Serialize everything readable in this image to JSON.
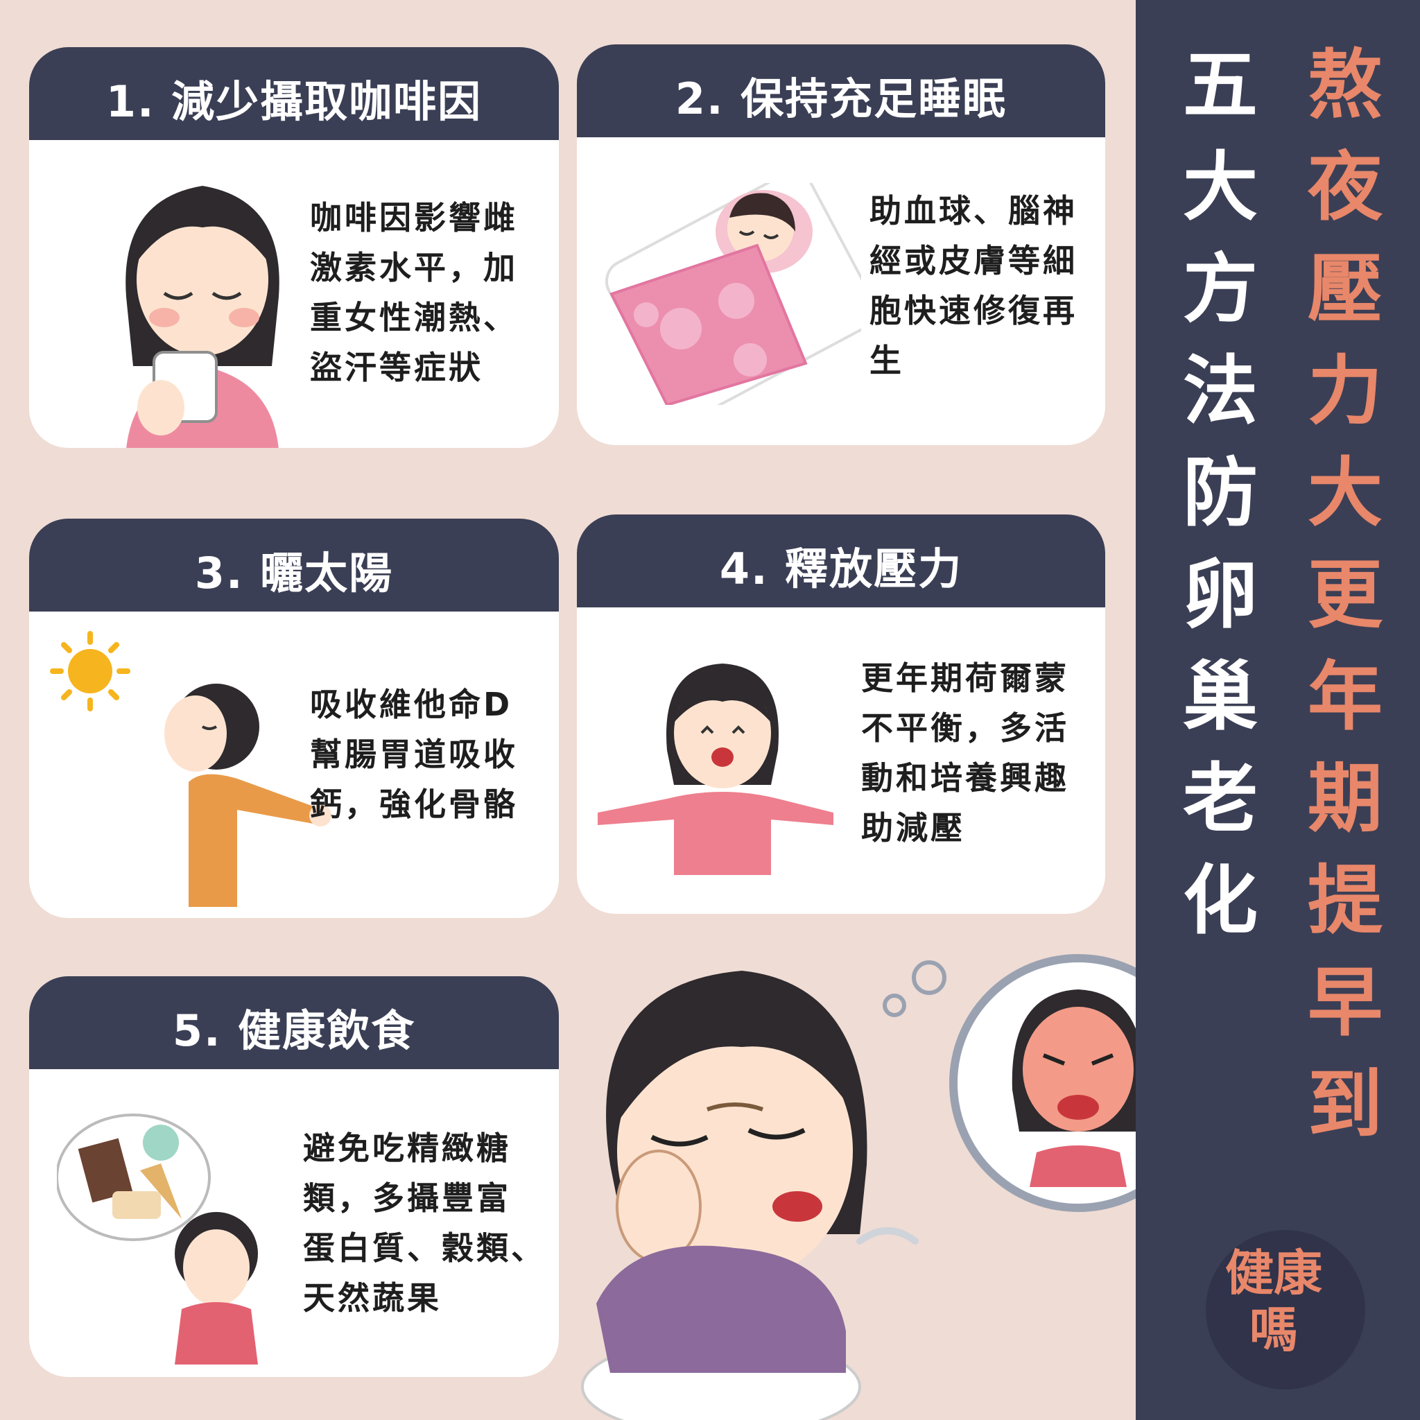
{
  "cards": [
    {
      "title": "1. 減少攝取咖啡因",
      "lines": [
        "咖啡因影響雌",
        "激素水平，加",
        "重女性潮熱、",
        "盜汗等症狀"
      ]
    },
    {
      "title": "2. 保持充足睡眠",
      "lines": [
        "助血球、腦神",
        "經或皮膚等細",
        "胞快速修復再",
        "生"
      ]
    },
    {
      "title": "3. 曬太陽",
      "lines": [
        "吸收維他命D",
        "幫腸胃道吸收",
        "鈣，強化骨骼"
      ]
    },
    {
      "title": "4. 釋放壓力",
      "lines": [
        "更年期荷爾蒙",
        "不平衡，多活",
        "動和培養興趣",
        "助減壓"
      ]
    },
    {
      "title": "5. 健康飲食",
      "lines": [
        "避免吃精緻糖",
        "類，多攝豐富",
        "蛋白質、穀類、",
        "天然蔬果"
      ]
    }
  ],
  "headline": {
    "line1": [
      "熬",
      "夜",
      "壓",
      "力",
      "大",
      "更",
      "年",
      "期",
      "提",
      "早",
      "到"
    ],
    "line2": [
      "五",
      "大",
      "方",
      "法",
      "防",
      "卵",
      "巢",
      "老",
      "化"
    ]
  },
  "logo": {
    "line1": "健康",
    "line2": "嗎"
  },
  "colors": {
    "navy": "#3b3f55",
    "accent": "#e8876a",
    "background": "#efdcd4"
  }
}
